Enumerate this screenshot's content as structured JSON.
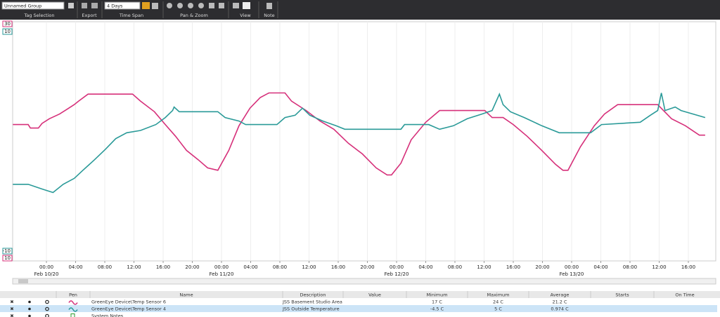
{
  "toolbar": {
    "group": "Unnamed Group",
    "tag_selection": "Tag Selection",
    "export": "Export",
    "time_span_value": "4 Days",
    "time_span": "Time Span",
    "pan_zoom": "Pan & Zoom",
    "view": "View",
    "note": "Note"
  },
  "chart_data": {
    "type": "line",
    "xlim": [
      -4.63,
      90.41
    ],
    "xticks": [
      {
        "value": 0,
        "label": "00:00"
      },
      {
        "value": 4,
        "label": "04:00"
      },
      {
        "value": 8,
        "label": "08:00"
      },
      {
        "value": 12,
        "label": "12:00"
      },
      {
        "value": 16,
        "label": "16:00"
      },
      {
        "value": 20,
        "label": "20:00"
      },
      {
        "value": 24,
        "label": "00:00"
      },
      {
        "value": 28,
        "label": "04:00"
      },
      {
        "value": 32,
        "label": "08:00"
      },
      {
        "value": 36,
        "label": "12:00"
      },
      {
        "value": 40,
        "label": "16:00"
      },
      {
        "value": 44,
        "label": "20:00"
      },
      {
        "value": 48,
        "label": "00:00"
      },
      {
        "value": 52,
        "label": "04:00"
      },
      {
        "value": 56,
        "label": "08:00"
      },
      {
        "value": 60,
        "label": "12:00"
      },
      {
        "value": 64,
        "label": "16:00"
      },
      {
        "value": 68,
        "label": "20:00"
      },
      {
        "value": 72,
        "label": "00:00"
      },
      {
        "value": 76,
        "label": "04:00"
      },
      {
        "value": 80,
        "label": "08:00"
      },
      {
        "value": 84,
        "label": "12:00"
      },
      {
        "value": 88,
        "label": "16:00"
      }
    ],
    "day_ticks": [
      {
        "value": 0,
        "label": "Feb 10/20"
      },
      {
        "value": 24,
        "label": "Feb 11/20"
      },
      {
        "value": 48,
        "label": "Feb 12/20"
      },
      {
        "value": 72,
        "label": "Feb 13/20"
      }
    ],
    "ylim": [
      10,
      30
    ],
    "yticks": [
      10,
      30
    ],
    "y2lim": [
      -10,
      10
    ],
    "y2ticks": [
      -10,
      10
    ],
    "grid": true,
    "series": [
      {
        "name": "GreenEye Device\\Temp Sensor 6",
        "color": "#d6307a",
        "x": [
          -4.6,
          -2.5,
          -2.2,
          -1.1,
          -0.6,
          0.4,
          1.8,
          2.8,
          3.8,
          4.4,
          5.7,
          11.8,
          12.9,
          14.8,
          16.3,
          17.7,
          19.2,
          20.8,
          22.1,
          23.5,
          25.0,
          26.4,
          27.9,
          29.3,
          30.5,
          32.7,
          33.6,
          35.6,
          37.5,
          39.4,
          41.4,
          43.3,
          45.2,
          46.7,
          47.3,
          48.6,
          50.0,
          52.0,
          53.9,
          60.1,
          61.1,
          62.6,
          64.0,
          65.9,
          67.9,
          69.8,
          70.8,
          71.5,
          73.2,
          75.1,
          76.5,
          78.3,
          83.8,
          85.7,
          87.6,
          89.5,
          90.3
        ],
        "values": [
          21.4,
          21.4,
          21.1,
          21.1,
          21.5,
          21.9,
          22.3,
          22.7,
          23.1,
          23.4,
          24.0,
          24.0,
          23.4,
          22.5,
          21.4,
          20.4,
          19.2,
          18.4,
          17.7,
          17.5,
          19.2,
          21.3,
          22.8,
          23.7,
          24.1,
          24.1,
          23.4,
          22.6,
          21.7,
          21.0,
          19.8,
          18.9,
          17.7,
          17.1,
          17.1,
          18.1,
          20.1,
          21.6,
          22.6,
          22.6,
          22.0,
          22.0,
          21.4,
          20.4,
          19.2,
          18.0,
          17.5,
          17.5,
          19.5,
          21.3,
          22.3,
          23.1,
          23.1,
          21.9,
          21.3,
          20.5,
          20.5
        ]
      },
      {
        "name": "GreenEye Device\\Temp Sensor 4",
        "color": "#2a9a98",
        "axis": "y2",
        "x": [
          -4.6,
          -2.5,
          -0.6,
          0.9,
          2.3,
          3.8,
          5.0,
          6.6,
          8.1,
          9.5,
          11.0,
          12.9,
          15.0,
          16.3,
          17.3,
          17.5,
          18.2,
          23.5,
          24.5,
          26.4,
          27.3,
          31.6,
          32.7,
          34.1,
          35.1,
          36.1,
          37.9,
          39.7,
          40.9,
          48.6,
          49.1,
          52.4,
          53.9,
          55.8,
          57.7,
          59.7,
          61.1,
          62.1,
          62.6,
          63.6,
          65.5,
          67.9,
          70.3,
          74.6,
          76.1,
          81.4,
          82.8,
          83.8,
          84.3,
          84.8,
          86.2,
          87.0,
          90.3
        ],
        "values": [
          -3.7,
          -3.7,
          -4.1,
          -4.4,
          -3.7,
          -3.2,
          -2.5,
          -1.6,
          -0.7,
          0.2,
          0.7,
          0.9,
          1.4,
          2.0,
          2.6,
          2.9,
          2.5,
          2.5,
          2.0,
          1.7,
          1.4,
          1.4,
          2.0,
          2.2,
          2.8,
          2.2,
          1.7,
          1.3,
          1.0,
          1.0,
          1.4,
          1.4,
          1.0,
          1.3,
          1.9,
          2.3,
          2.6,
          4.0,
          3.1,
          2.5,
          2.0,
          1.3,
          0.7,
          0.7,
          1.4,
          1.6,
          2.2,
          2.6,
          4.1,
          2.6,
          2.9,
          2.6,
          2.0
        ]
      }
    ]
  },
  "table": {
    "columns": [
      "Pen",
      "Name",
      "Description",
      "Value",
      "Minimum",
      "Maximum",
      "Average",
      "Starts",
      "On Time"
    ],
    "rows": [
      {
        "description": "JSS Basement Studio Area",
        "minimum": "17 C",
        "maximum": "24 C",
        "average": "21.2 C"
      },
      {
        "description": "JSS Outside Temperature",
        "minimum": "-4.5 C",
        "maximum": "5 C",
        "average": "0.974 C"
      },
      {
        "name": "System Notes"
      }
    ]
  }
}
